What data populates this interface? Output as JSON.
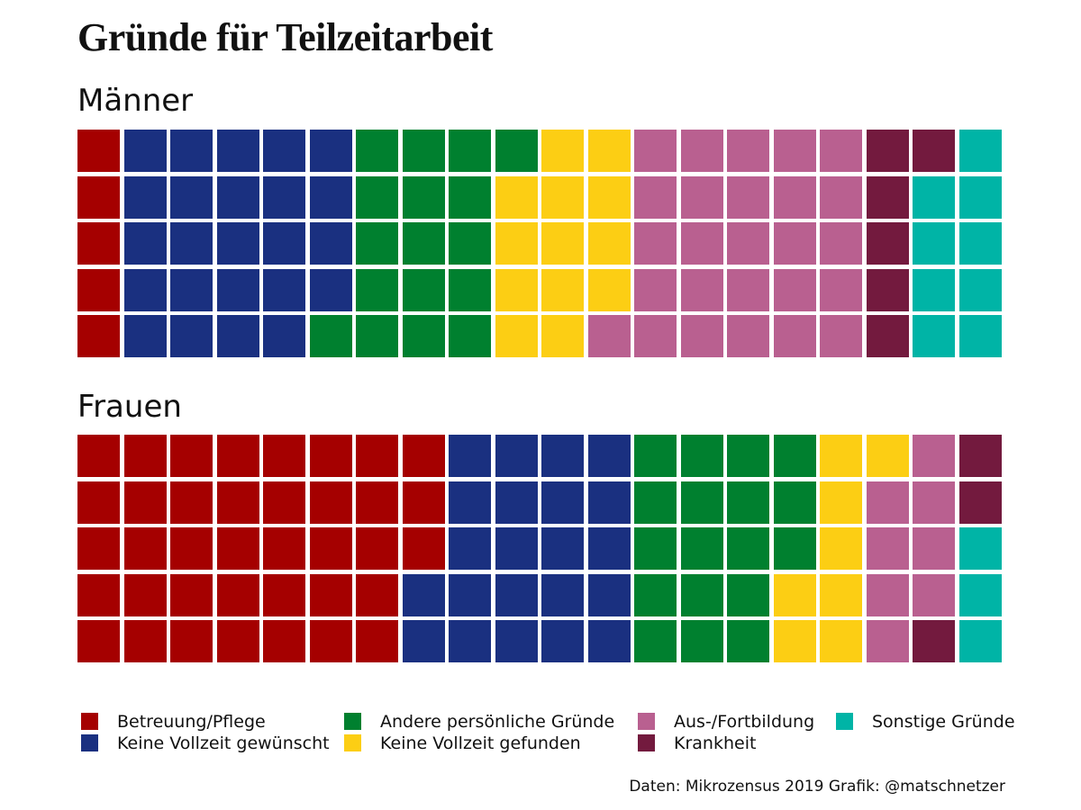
{
  "colors": {
    "Betreuung/Pflege": "#a50000",
    "Keine Vollzeit gewünscht": "#1a3080",
    "Andere persönliche Gründe": "#00802f",
    "Keine Vollzeit gefunden": "#fcce14",
    "Aus-/Fortbildung": "#b96090",
    "Krankheit": "#731a3e",
    "Sonstige Gründe": "#00b4a6"
  },
  "legend": [
    {
      "label": "Betreuung/Pflege"
    },
    {
      "label": "Keine Vollzeit gewünscht"
    },
    {
      "label": "Andere persönliche Gründe"
    },
    {
      "label": "Keine Vollzeit gefunden"
    },
    {
      "label": "Aus-/Fortbildung"
    },
    {
      "label": "Krankheit"
    },
    {
      "label": "Sonstige Gründe"
    }
  ],
  "chart_data": {
    "type": "waffle",
    "title": "Gründe für Teilzeitarbeit",
    "source": "Daten: Mikrozensus 2019 Grafik: @matschnetzer",
    "grid": {
      "rows": 5,
      "cols": 20
    },
    "panels": [
      {
        "label": "Männer",
        "series": [
          {
            "name": "Betreuung/Pflege",
            "value": 5
          },
          {
            "name": "Keine Vollzeit gewünscht",
            "value": 24
          },
          {
            "name": "Andere persönliche Gründe",
            "value": 17
          },
          {
            "name": "Keine Vollzeit gefunden",
            "value": 13
          },
          {
            "name": "Aus-/Fortbildung",
            "value": 26
          },
          {
            "name": "Krankheit",
            "value": 6
          },
          {
            "name": "Sonstige Gründe",
            "value": 9
          }
        ]
      },
      {
        "label": "Frauen",
        "series": [
          {
            "name": "Betreuung/Pflege",
            "value": 38
          },
          {
            "name": "Keine Vollzeit gewünscht",
            "value": 22
          },
          {
            "name": "Andere persönliche Gründe",
            "value": 18
          },
          {
            "name": "Keine Vollzeit gefunden",
            "value": 8
          },
          {
            "name": "Aus-/Fortbildung",
            "value": 8
          },
          {
            "name": "Krankheit",
            "value": 3
          },
          {
            "name": "Sonstige Gründe",
            "value": 3
          }
        ]
      }
    ]
  }
}
